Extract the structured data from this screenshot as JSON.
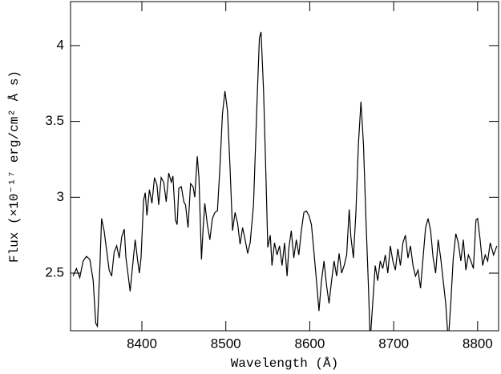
{
  "chart_data": {
    "type": "line",
    "x_label": "Wavelength (Å)",
    "y_label": "Flux (×10⁻¹⁷ erg/cm² Å s)",
    "color": "#000000",
    "xlim": [
      8315,
      8825
    ],
    "ylim": [
      2.12,
      4.29
    ],
    "xticks": [
      8400,
      8500,
      8600,
      8700,
      8800
    ],
    "yticks": [
      2.5,
      3,
      3.5,
      4
    ],
    "x": [
      8318,
      8322,
      8326,
      8330,
      8334,
      8338,
      8342,
      8345,
      8347,
      8350,
      8352,
      8355,
      8358,
      8361,
      8364,
      8367,
      8370,
      8373,
      8376,
      8379,
      8381,
      8384,
      8386,
      8389,
      8392,
      8395,
      8397,
      8399,
      8402,
      8404,
      8406,
      8409,
      8412,
      8415,
      8418,
      8420,
      8423,
      8426,
      8429,
      8432,
      8435,
      8437,
      8440,
      8442,
      8444,
      8447,
      8450,
      8452,
      8455,
      8458,
      8461,
      8463,
      8466,
      8468,
      8471,
      8473,
      8475,
      8478,
      8481,
      8484,
      8487,
      8490,
      8493,
      8496,
      8499,
      8502,
      8505,
      8508,
      8511,
      8514,
      8517,
      8520,
      8523,
      8526,
      8529,
      8533,
      8537,
      8540,
      8542,
      8545,
      8548,
      8550,
      8553,
      8555,
      8558,
      8561,
      8564,
      8567,
      8570,
      8573,
      8575,
      8578,
      8581,
      8584,
      8587,
      8590,
      8593,
      8596,
      8599,
      8602,
      8605,
      8608,
      8611,
      8614,
      8617,
      8620,
      8623,
      8626,
      8629,
      8632,
      8635,
      8638,
      8641,
      8644,
      8647,
      8649,
      8652,
      8655,
      8658,
      8661,
      8664,
      8667,
      8670,
      8672,
      8675,
      8678,
      8681,
      8684,
      8687,
      8690,
      8693,
      8696,
      8699,
      8702,
      8705,
      8708,
      8711,
      8714,
      8717,
      8720,
      8723,
      8726,
      8729,
      8732,
      8735,
      8738,
      8741,
      8744,
      8747,
      8750,
      8753,
      8756,
      8759,
      8762,
      8765,
      8768,
      8771,
      8774,
      8777,
      8780,
      8783,
      8786,
      8789,
      8792,
      8795,
      8798,
      8800,
      8803,
      8806,
      8809,
      8812,
      8815,
      8819,
      8823
    ],
    "values": [
      2.48,
      2.53,
      2.47,
      2.58,
      2.61,
      2.59,
      2.45,
      2.17,
      2.15,
      2.55,
      2.86,
      2.78,
      2.65,
      2.52,
      2.48,
      2.64,
      2.68,
      2.6,
      2.74,
      2.79,
      2.6,
      2.47,
      2.38,
      2.55,
      2.72,
      2.58,
      2.5,
      2.6,
      2.98,
      3.03,
      2.88,
      3.05,
      2.96,
      3.13,
      3.08,
      2.95,
      3.13,
      3.1,
      2.97,
      3.16,
      3.1,
      3.14,
      2.85,
      2.82,
      3.06,
      3.07,
      2.97,
      2.95,
      2.8,
      3.09,
      3.07,
      3.0,
      3.27,
      3.13,
      2.59,
      2.8,
      2.96,
      2.82,
      2.72,
      2.86,
      2.9,
      2.91,
      3.2,
      3.55,
      3.7,
      3.57,
      3.2,
      2.78,
      2.9,
      2.83,
      2.69,
      2.8,
      2.72,
      2.63,
      2.7,
      2.95,
      3.6,
      4.05,
      4.09,
      3.7,
      3.1,
      2.67,
      2.75,
      2.55,
      2.7,
      2.62,
      2.68,
      2.55,
      2.7,
      2.48,
      2.66,
      2.78,
      2.6,
      2.72,
      2.62,
      2.78,
      2.9,
      2.91,
      2.88,
      2.82,
      2.64,
      2.45,
      2.25,
      2.45,
      2.58,
      2.42,
      2.3,
      2.45,
      2.58,
      2.48,
      2.63,
      2.5,
      2.55,
      2.62,
      2.92,
      2.74,
      2.6,
      2.9,
      3.35,
      3.63,
      3.35,
      2.85,
      2.4,
      2.05,
      2.3,
      2.55,
      2.45,
      2.58,
      2.53,
      2.62,
      2.5,
      2.68,
      2.58,
      2.52,
      2.66,
      2.55,
      2.7,
      2.75,
      2.6,
      2.68,
      2.55,
      2.48,
      2.52,
      2.4,
      2.6,
      2.8,
      2.86,
      2.78,
      2.6,
      2.5,
      2.72,
      2.6,
      2.45,
      2.3,
      2.05,
      2.3,
      2.6,
      2.76,
      2.7,
      2.58,
      2.72,
      2.52,
      2.62,
      2.58,
      2.53,
      2.85,
      2.86,
      2.72,
      2.55,
      2.62,
      2.58,
      2.7,
      2.62,
      2.68
    ]
  }
}
